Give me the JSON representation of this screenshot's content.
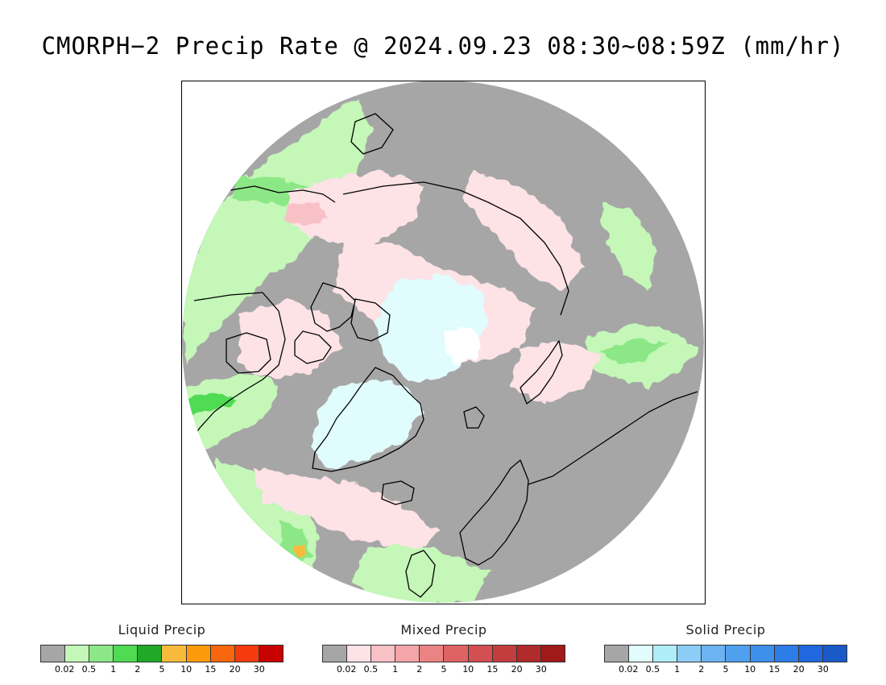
{
  "title": "CMORPH−2 Precip Rate @ 2024.09.23 08:30~08:59Z (mm/hr)",
  "legends": [
    {
      "label": "Liquid Precip",
      "colors": [
        "#a6a6a6",
        "#c4f7b8",
        "#8ce886",
        "#4fdb52",
        "#21a828",
        "#f8ba3b",
        "#fb9a0d",
        "#f8660e",
        "#f53a0d",
        "#c70000"
      ],
      "ticks": [
        "0.02",
        "0.5",
        "1",
        "2",
        "5",
        "10",
        "15",
        "20",
        "30"
      ]
    },
    {
      "label": "Mixed Precip",
      "colors": [
        "#a6a6a6",
        "#fde2e6",
        "#f8c1c6",
        "#f3a5a8",
        "#ea8384",
        "#df6263",
        "#d34f51",
        "#c33d3f",
        "#b12a2c",
        "#a0191b"
      ],
      "ticks": [
        "0.02",
        "0.5",
        "1",
        "2",
        "5",
        "10",
        "15",
        "20",
        "30"
      ]
    },
    {
      "label": "Solid Precip",
      "colors": [
        "#a6a6a6",
        "#e0fcfc",
        "#aeeef9",
        "#8ccdf7",
        "#6bb3f3",
        "#4fa0ef",
        "#3f8fec",
        "#2d7ce7",
        "#1f68df",
        "#1a5ac8"
      ],
      "ticks": [
        "0.02",
        "0.5",
        "1",
        "2",
        "5",
        "10",
        "15",
        "20",
        "30"
      ]
    }
  ]
}
